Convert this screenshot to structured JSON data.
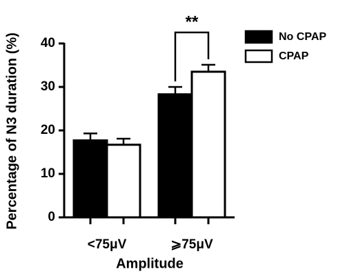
{
  "chart_data": {
    "type": "bar",
    "y_label": "Percentage of N3 duration (%)",
    "x_label": "Amplitude",
    "categories": [
      "<75μV",
      "⩾75μV"
    ],
    "series": [
      {
        "name": "No CPAP",
        "color": "#000000",
        "values": [
          17.7,
          28.3
        ],
        "errors": [
          1.6,
          1.7
        ]
      },
      {
        "name": "CPAP",
        "color": "#ffffff",
        "values": [
          16.7,
          33.5
        ],
        "errors": [
          1.4,
          1.6
        ]
      }
    ],
    "annotation": "**",
    "ylim": [
      0,
      40
    ],
    "yticks": [
      0,
      10,
      20,
      30,
      40
    ],
    "legend": "upper right"
  }
}
